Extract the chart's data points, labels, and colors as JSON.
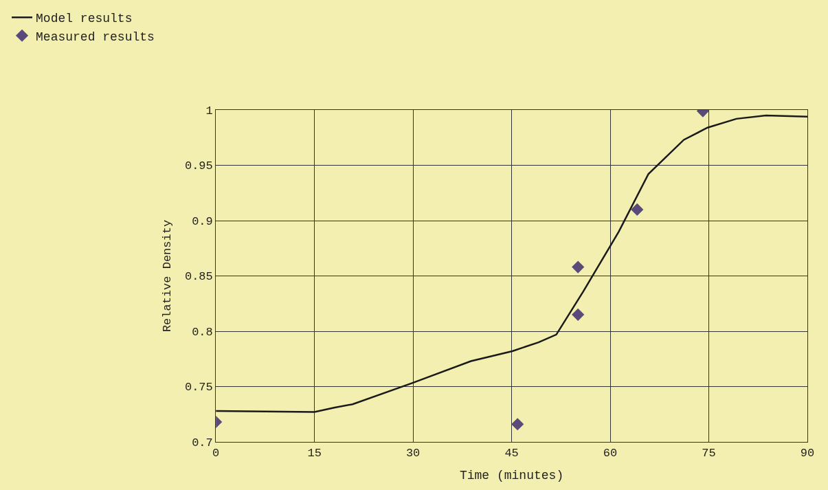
{
  "chart_data": {
    "type": "line",
    "xlabel": "Time (minutes)",
    "ylabel": "Relative Density",
    "xlim": [
      0,
      90
    ],
    "xticks": [
      0,
      15,
      30,
      45,
      60,
      75,
      90
    ],
    "ylim": [
      0.7,
      1
    ],
    "yticks": [
      {
        "value": 0.7,
        "label": "0.7"
      },
      {
        "value": 0.75,
        "label": "0.75"
      },
      {
        "value": 0.8,
        "label": "0.8"
      },
      {
        "value": 0.85,
        "label": "0.85"
      },
      {
        "value": 0.9,
        "label": "0.9"
      },
      {
        "value": 0.95,
        "label": "0.95"
      },
      {
        "value": 1,
        "label": "1"
      }
    ],
    "grid": true,
    "legend": "top left",
    "series": [
      {
        "name": "Model results",
        "color": "#1a1a1a",
        "marker": "none",
        "line_style": "solid",
        "x": [
          0,
          15,
          18.1,
          20.8,
          29.8,
          38.8,
          45.1,
          49.1,
          51.8,
          55.9,
          61.3,
          65.8,
          71.2,
          74.8,
          79.2,
          83.7,
          90
        ],
        "values": [
          0.728,
          0.727,
          0.731,
          0.734,
          0.753,
          0.773,
          0.782,
          0.79,
          0.797,
          0.836,
          0.89,
          0.942,
          0.973,
          0.984,
          0.992,
          0.995,
          0.994
        ]
      },
      {
        "name": "Measured results",
        "type": "scatter",
        "color": "#5a4a7a",
        "marker": "diamond",
        "x": [
          0,
          45.9,
          55.1,
          55.1,
          64.1,
          74.1
        ],
        "values": [
          0.718,
          0.716,
          0.858,
          0.815,
          0.91,
          0.999
        ]
      }
    ]
  }
}
